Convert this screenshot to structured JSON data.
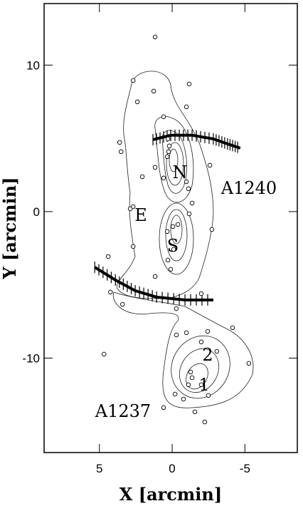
{
  "chart_data": {
    "type": "scatter",
    "x_label": "X [arcmin]",
    "y_label": "Y [arcmin]",
    "xlim": [
      8.8,
      -8.6
    ],
    "ylim": [
      -16.45,
      14.2
    ],
    "xticks": [
      5,
      0,
      -5
    ],
    "yticks": [
      10,
      0,
      -10
    ],
    "x": [
      1.17,
      2.68,
      1.27,
      -1.17,
      2.39,
      -0.98,
      0.59,
      3.61,
      3.51,
      0.29,
      0.24,
      0.34,
      0.2,
      2.05,
      1.17,
      0.59,
      -0.98,
      -1.12,
      -2.59,
      2.68,
      2.88,
      -1.17,
      -0.39,
      -0.05,
      0.34,
      -1.37,
      -2.73,
      2.68,
      4.39,
      -0.1,
      0.29,
      0.1,
      1.17,
      4.24,
      3.41,
      -0.29,
      -2,
      -0.29,
      -0.98,
      -2.44,
      -4.15,
      4.68,
      -2,
      -3.07,
      -1.27,
      -1.37,
      -2,
      -2.49,
      -5.27,
      -0.2,
      -0.78,
      0.59,
      -2.24,
      -1.56,
      -1.12
    ],
    "y": [
      11.92,
      8.95,
      8.22,
      8.71,
      7.49,
      7.15,
      6.47,
      4.72,
      4.09,
      4.96,
      4.09,
      3.75,
      4.48,
      2.38,
      3.02,
      2.29,
      2.04,
      1.56,
      3.16,
      0.34,
      0.19,
      -0.15,
      -0.88,
      -1.02,
      -1.36,
      0.58,
      -1.22,
      -2.38,
      -3.07,
      -2.58,
      -3.31,
      -3.94,
      -4.43,
      -5.5,
      -6.33,
      -6.62,
      -5.6,
      -8.42,
      -8.27,
      -8.18,
      -7.93,
      -9.73,
      -8.9,
      -9.54,
      -10.95,
      -11.34,
      -11.82,
      -12.55,
      -10.36,
      -12.46,
      -12.8,
      -13.38,
      -14.36,
      -13.67,
      -11.82
    ],
    "lines": [
      {
        "x": [
          1.32,
          0.1,
          -1.37,
          -2.83,
          -3.8,
          -4.68
        ],
        "y": [
          4.91,
          5.21,
          5.21,
          4.96,
          4.62,
          4.33
        ]
      },
      {
        "x": [
          5.32,
          3.9,
          2.54,
          1.07,
          -0.88,
          -2.83
        ],
        "y": [
          -3.8,
          -4.67,
          -5.4,
          -5.84,
          -6.03,
          -6.03
        ]
      }
    ],
    "annotations": [
      "N",
      "S",
      "E",
      "A1240",
      "2",
      "1",
      "A1237"
    ]
  }
}
